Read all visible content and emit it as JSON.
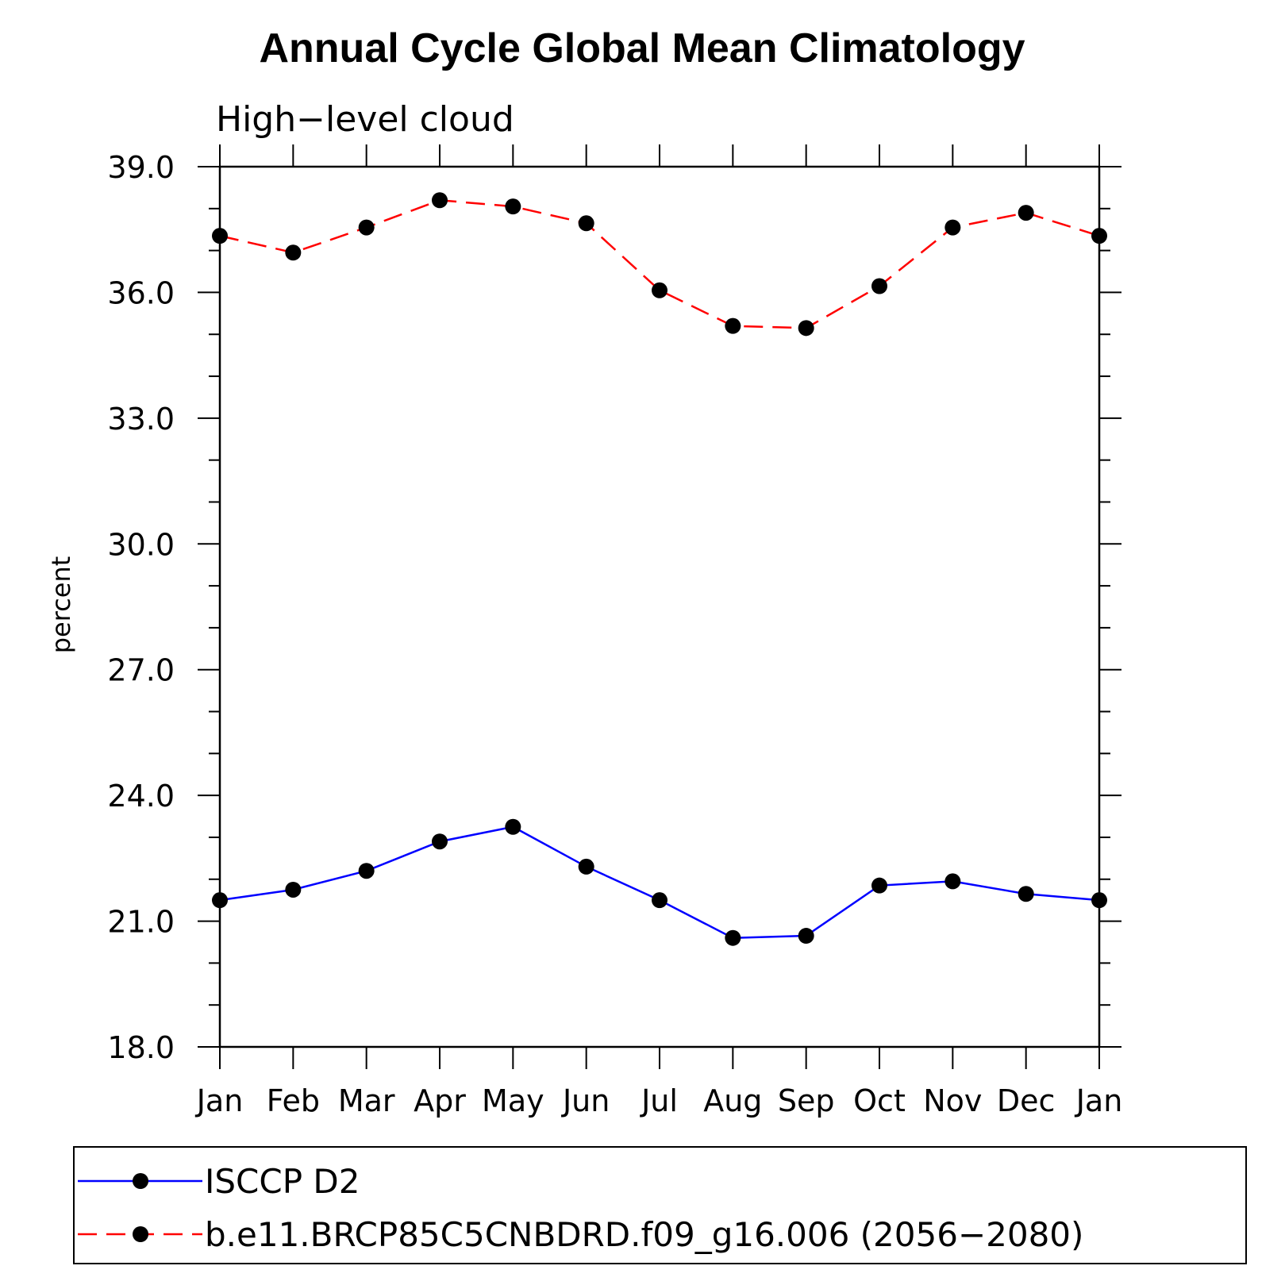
{
  "chart_data": {
    "type": "line",
    "title": "Annual Cycle Global Mean Climatology",
    "subtitle": "High−level cloud",
    "xlabel": "",
    "ylabel": "percent",
    "categories": [
      "Jan",
      "Feb",
      "Mar",
      "Apr",
      "May",
      "Jun",
      "Jul",
      "Aug",
      "Sep",
      "Oct",
      "Nov",
      "Dec",
      "Jan"
    ],
    "ylim": [
      18.0,
      39.0
    ],
    "yticks": [
      "18.0",
      "21.0",
      "24.0",
      "27.0",
      "30.0",
      "33.0",
      "36.0",
      "39.0"
    ],
    "grid": false,
    "legend_position": "bottom",
    "series": [
      {
        "name": "ISCCP D2",
        "color": "#0000ff",
        "line_style": "solid",
        "marker": "filled-circle",
        "values": [
          21.5,
          21.75,
          22.2,
          22.9,
          23.25,
          22.3,
          21.5,
          20.6,
          20.65,
          21.85,
          21.95,
          21.65,
          21.5
        ]
      },
      {
        "name": "b.e11.BRCP85C5CNBDRD.f09_g16.006 (2056−2080)",
        "color": "#ff0000",
        "line_style": "dashed",
        "marker": "filled-circle",
        "values": [
          37.35,
          36.95,
          37.55,
          38.2,
          38.05,
          37.65,
          36.05,
          35.2,
          35.15,
          36.15,
          37.55,
          37.9,
          37.35
        ]
      }
    ]
  }
}
